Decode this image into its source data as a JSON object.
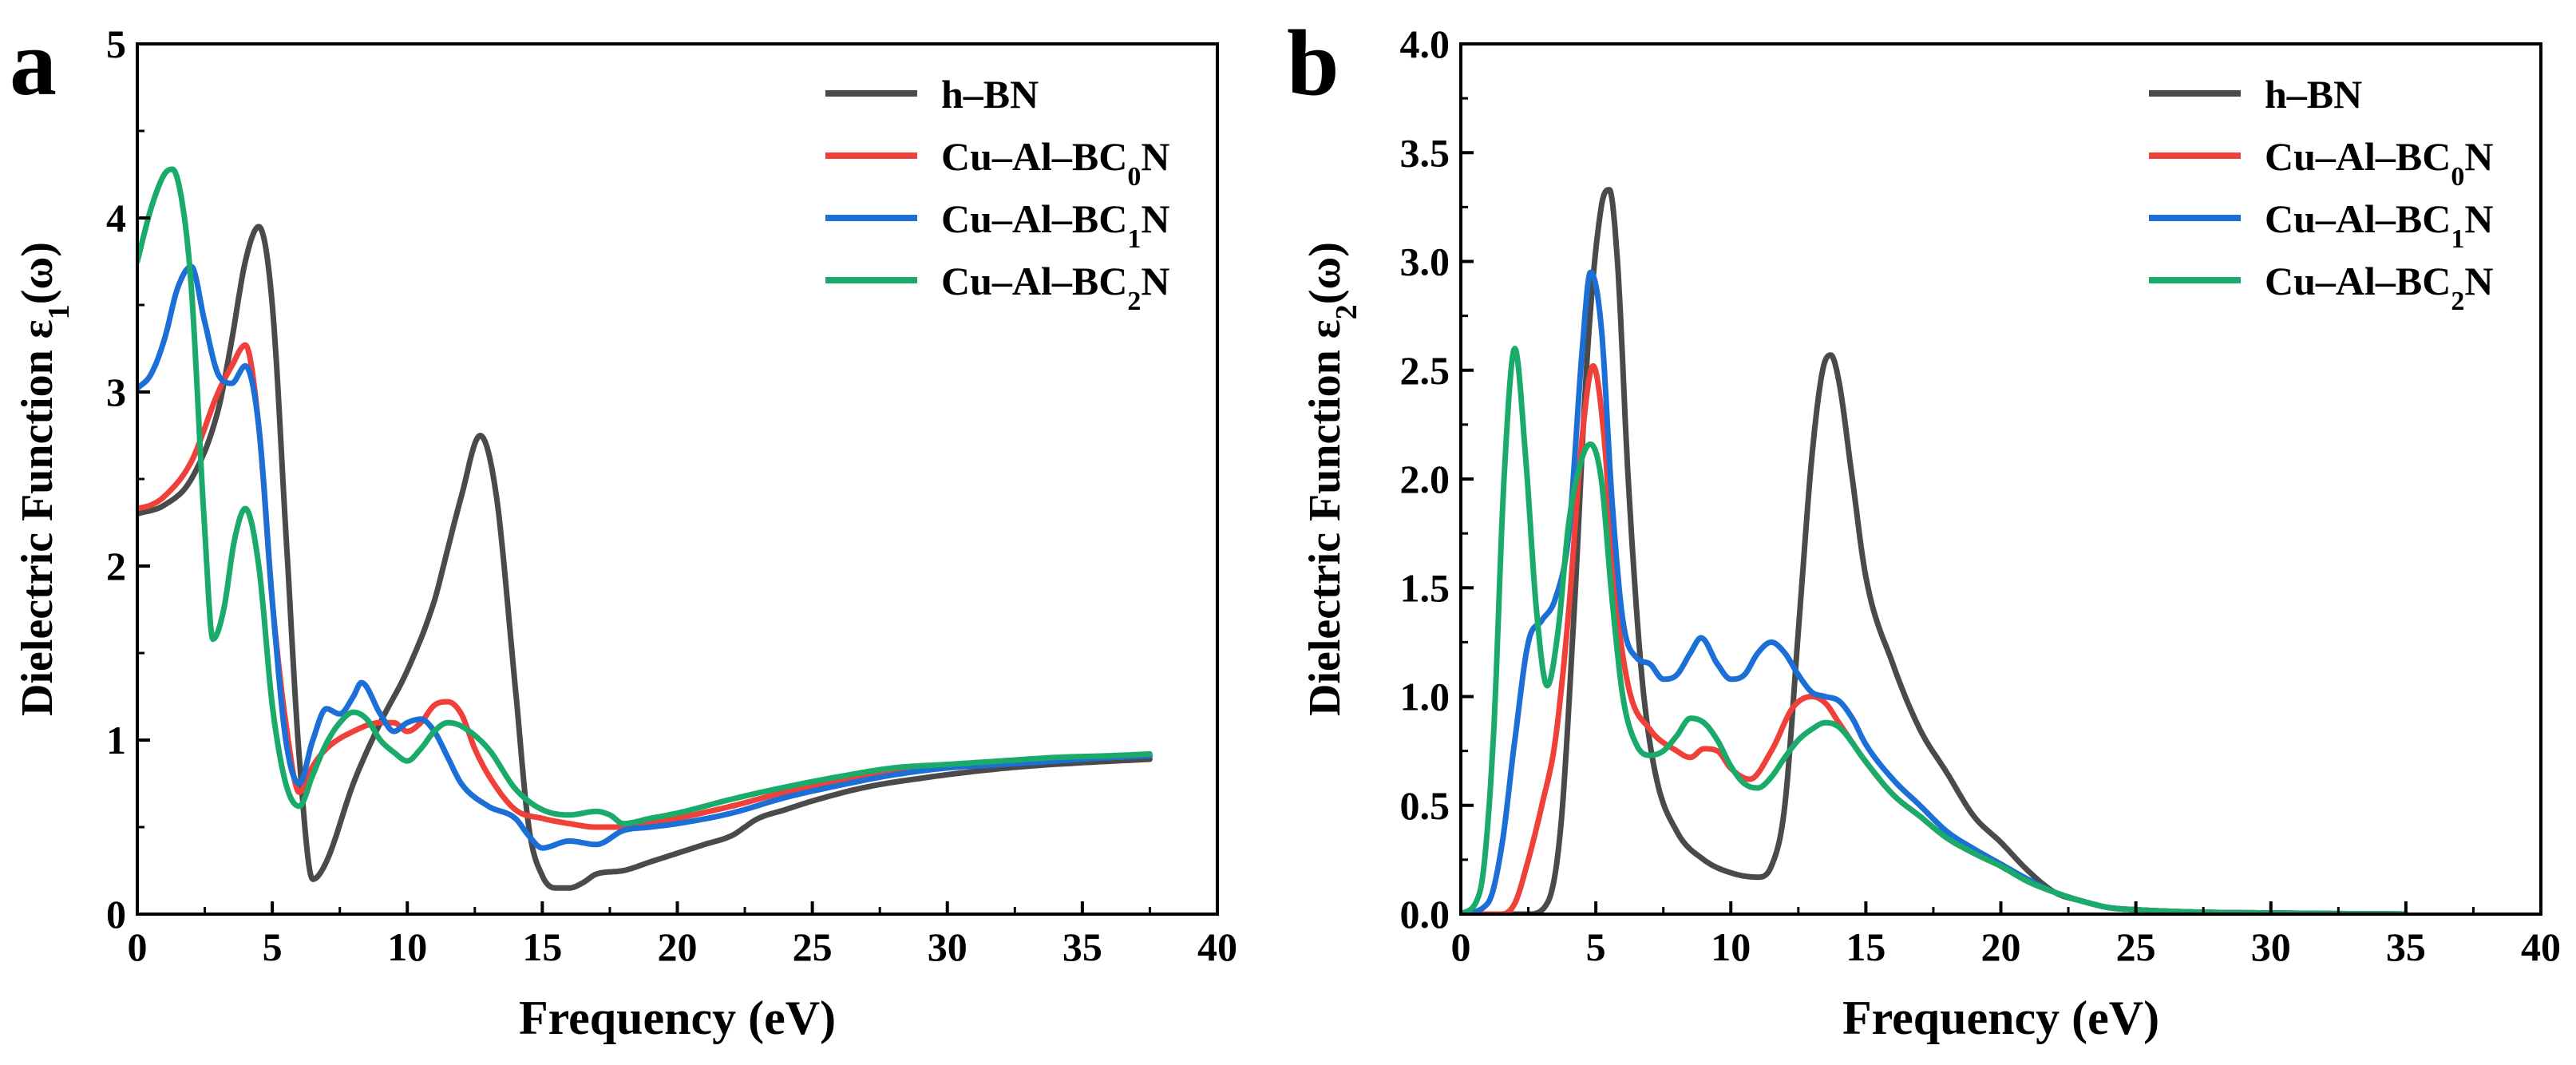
{
  "figure": {
    "background": "#ffffff"
  },
  "chart_data": [
    {
      "type": "line",
      "panel_label": "a",
      "xlabel": "Frequency (eV)",
      "ylabel": {
        "main": "Dielectric Function ε",
        "sub": "1",
        "tail": "(ω)"
      },
      "xlim": [
        0,
        40
      ],
      "ylim": [
        0,
        5
      ],
      "xticks": [
        0,
        5,
        10,
        15,
        20,
        25,
        30,
        35,
        40
      ],
      "yticks": [
        0,
        1,
        2,
        3,
        4,
        5
      ],
      "ytick_labels": [
        "0",
        "1",
        "2",
        "3",
        "4",
        "5"
      ],
      "legend_position": "top-right",
      "series": [
        {
          "name": "h-BN",
          "label": {
            "main": "h–BN"
          },
          "color": "#4a4a4a",
          "x": [
            0,
            1,
            2,
            3,
            3.5,
            4,
            4.5,
            5,
            5.5,
            6,
            6.5,
            7,
            8,
            9,
            10,
            11,
            11.5,
            12,
            12.7,
            13.3,
            14,
            14.5,
            15,
            15.5,
            16,
            16.5,
            17,
            18,
            19,
            20,
            21,
            22,
            23,
            24,
            25,
            27,
            29,
            31,
            33,
            35,
            37.5
          ],
          "y": [
            2.3,
            2.35,
            2.5,
            2.9,
            3.3,
            3.75,
            3.95,
            3.5,
            2.2,
            0.9,
            0.2,
            0.3,
            0.75,
            1.1,
            1.4,
            1.8,
            2.1,
            2.4,
            2.75,
            2.4,
            1.3,
            0.5,
            0.22,
            0.15,
            0.15,
            0.18,
            0.23,
            0.25,
            0.3,
            0.35,
            0.4,
            0.45,
            0.55,
            0.6,
            0.65,
            0.73,
            0.78,
            0.82,
            0.85,
            0.87,
            0.89
          ]
        },
        {
          "name": "Cu-Al-BC0N",
          "label": {
            "main": "Cu–Al–BC",
            "sub": "0",
            "tail": "N"
          },
          "color": "#f0403a",
          "x": [
            0,
            0.5,
            1,
            2,
            3,
            3.5,
            4,
            4.5,
            5,
            5.5,
            6,
            6.5,
            7,
            8,
            9,
            9.5,
            10,
            10.5,
            11,
            11.5,
            12,
            12.5,
            13,
            14,
            15,
            16,
            17,
            18,
            19,
            20,
            22,
            24,
            26,
            28,
            30,
            32,
            34,
            36,
            37.5
          ],
          "y": [
            2.33,
            2.35,
            2.4,
            2.6,
            3.0,
            3.15,
            3.27,
            2.8,
            1.8,
            1.1,
            0.7,
            0.85,
            0.95,
            1.05,
            1.1,
            1.1,
            1.05,
            1.1,
            1.2,
            1.22,
            1.15,
            0.95,
            0.8,
            0.6,
            0.55,
            0.52,
            0.5,
            0.5,
            0.52,
            0.55,
            0.62,
            0.7,
            0.76,
            0.82,
            0.85,
            0.87,
            0.89,
            0.9,
            0.91
          ]
        },
        {
          "name": "Cu-Al-BC1N",
          "label": {
            "main": "Cu–Al–BC",
            "sub": "1",
            "tail": "N"
          },
          "color": "#1c6fd6",
          "x": [
            0,
            0.5,
            1,
            1.5,
            2,
            2.5,
            3,
            3.5,
            4,
            4.5,
            5,
            5.5,
            6,
            6.5,
            7,
            7.5,
            8,
            8.3,
            9,
            9.5,
            10,
            10.5,
            11,
            11.5,
            12,
            13,
            14,
            14.5,
            15,
            16,
            17,
            18,
            19,
            20,
            22,
            24,
            26,
            28,
            30,
            32,
            34,
            36,
            37.5
          ],
          "y": [
            3.02,
            3.1,
            3.3,
            3.6,
            3.72,
            3.4,
            3.1,
            3.05,
            3.15,
            2.8,
            1.8,
            1.0,
            0.75,
            1.0,
            1.18,
            1.15,
            1.25,
            1.33,
            1.15,
            1.05,
            1.1,
            1.12,
            1.05,
            0.9,
            0.75,
            0.62,
            0.55,
            0.45,
            0.38,
            0.42,
            0.4,
            0.48,
            0.5,
            0.52,
            0.58,
            0.67,
            0.74,
            0.8,
            0.84,
            0.86,
            0.88,
            0.9,
            0.91
          ]
        },
        {
          "name": "Cu-Al-BC2N",
          "label": {
            "main": "Cu–Al–BC",
            "sub": "2",
            "tail": "N"
          },
          "color": "#1aab6a",
          "x": [
            0,
            0.5,
            1,
            1.3,
            1.7,
            2,
            2.5,
            2.8,
            3.2,
            3.6,
            4,
            4.5,
            5,
            5.5,
            6,
            6.5,
            7,
            7.5,
            8,
            8.5,
            9,
            9.5,
            10,
            10.5,
            11,
            11.5,
            12,
            13,
            14,
            15,
            16,
            17,
            17.5,
            18,
            19,
            20,
            22,
            24,
            26,
            28,
            30,
            32,
            34,
            36,
            37.5
          ],
          "y": [
            3.75,
            4.05,
            4.25,
            4.28,
            4.05,
            3.6,
            2.2,
            1.58,
            1.75,
            2.15,
            2.33,
            2.0,
            1.2,
            0.75,
            0.62,
            0.8,
            0.98,
            1.1,
            1.16,
            1.12,
            1.0,
            0.93,
            0.88,
            0.95,
            1.05,
            1.1,
            1.08,
            0.95,
            0.72,
            0.6,
            0.57,
            0.59,
            0.57,
            0.52,
            0.55,
            0.58,
            0.66,
            0.73,
            0.79,
            0.84,
            0.86,
            0.88,
            0.9,
            0.91,
            0.92
          ]
        }
      ]
    },
    {
      "type": "line",
      "panel_label": "b",
      "xlabel": "Frequency (eV)",
      "ylabel": {
        "main": "Dielectric Function ε",
        "sub": "2",
        "tail": "(ω)"
      },
      "xlim": [
        0,
        40
      ],
      "ylim": [
        0,
        4
      ],
      "xticks": [
        0,
        5,
        10,
        15,
        20,
        25,
        30,
        35,
        40
      ],
      "yticks": [
        0,
        0.5,
        1,
        1.5,
        2,
        2.5,
        3,
        3.5,
        4
      ],
      "ytick_labels": [
        "0.0",
        "0.5",
        "1.0",
        "1.5",
        "2.0",
        "2.5",
        "3.0",
        "3.5",
        "4.0"
      ],
      "legend_position": "top-right",
      "series": [
        {
          "name": "h-BN",
          "label": {
            "main": "h–BN"
          },
          "color": "#4a4a4a",
          "x": [
            0,
            2.5,
            3.2,
            3.7,
            4.2,
            4.7,
            5.2,
            5.5,
            5.8,
            6.2,
            6.7,
            7.2,
            8,
            9,
            10,
            11,
            11.5,
            12,
            12.5,
            13,
            13.4,
            13.7,
            14,
            14.5,
            15,
            16,
            17,
            18,
            19,
            20,
            21,
            22,
            23,
            24,
            25,
            27,
            30,
            35
          ],
          "y": [
            0,
            0,
            0.05,
            0.4,
            1.4,
            2.6,
            3.25,
            3.33,
            3.0,
            2.0,
            1.1,
            0.65,
            0.38,
            0.25,
            0.19,
            0.17,
            0.22,
            0.5,
            1.3,
            2.1,
            2.5,
            2.57,
            2.45,
            2.0,
            1.55,
            1.15,
            0.85,
            0.65,
            0.45,
            0.33,
            0.2,
            0.1,
            0.06,
            0.03,
            0.02,
            0.01,
            0.005,
            0
          ]
        },
        {
          "name": "Cu-Al-BC0N",
          "label": {
            "main": "Cu–Al–BC",
            "sub": "0",
            "tail": "N"
          },
          "color": "#f0403a",
          "x": [
            0,
            1.5,
            2,
            2.5,
            3,
            3.5,
            4,
            4.5,
            4.9,
            5.3,
            5.7,
            6.2,
            7,
            8,
            8.5,
            9,
            9.5,
            10,
            10.7,
            11.5,
            12.3,
            13,
            13.5,
            14,
            15,
            16,
            17,
            18,
            19,
            20,
            21,
            22,
            23,
            24,
            25,
            27,
            30,
            35
          ],
          "y": [
            0,
            0,
            0.05,
            0.25,
            0.5,
            0.8,
            1.4,
            2.2,
            2.52,
            2.2,
            1.5,
            1.05,
            0.85,
            0.75,
            0.72,
            0.76,
            0.75,
            0.67,
            0.62,
            0.75,
            0.95,
            1.0,
            0.97,
            0.88,
            0.7,
            0.55,
            0.45,
            0.35,
            0.28,
            0.22,
            0.15,
            0.1,
            0.06,
            0.03,
            0.02,
            0.01,
            0.005,
            0
          ]
        },
        {
          "name": "Cu-Al-BC1N",
          "label": {
            "main": "Cu–Al–BC",
            "sub": "1",
            "tail": "N"
          },
          "color": "#1c6fd6",
          "x": [
            0,
            1,
            1.5,
            2,
            2.5,
            3,
            3.5,
            4,
            4.5,
            4.8,
            5.2,
            5.6,
            6,
            6.5,
            7,
            7.5,
            8,
            8.5,
            8.9,
            9.5,
            10,
            10.5,
            11,
            11.5,
            12,
            12.5,
            13,
            13.5,
            14,
            14.5,
            15,
            16,
            17,
            18,
            19,
            20,
            21,
            22,
            23,
            24,
            25,
            27,
            30,
            35
          ],
          "y": [
            0,
            0.05,
            0.3,
            0.8,
            1.25,
            1.35,
            1.45,
            1.75,
            2.6,
            2.95,
            2.7,
            1.9,
            1.35,
            1.18,
            1.15,
            1.08,
            1.1,
            1.2,
            1.27,
            1.15,
            1.08,
            1.1,
            1.2,
            1.25,
            1.2,
            1.1,
            1.02,
            1.0,
            0.98,
            0.9,
            0.78,
            0.62,
            0.5,
            0.38,
            0.3,
            0.23,
            0.16,
            0.1,
            0.06,
            0.03,
            0.02,
            0.01,
            0.005,
            0
          ]
        },
        {
          "name": "Cu-Al-BC2N",
          "label": {
            "main": "Cu–Al–BC",
            "sub": "2",
            "tail": "N"
          },
          "color": "#1aab6a",
          "x": [
            0,
            0.7,
            1.2,
            1.6,
            2,
            2.4,
            2.8,
            3.2,
            3.6,
            4,
            4.5,
            4.8,
            5.2,
            5.6,
            6,
            6.5,
            7,
            7.5,
            8,
            8.5,
            9,
            9.5,
            10,
            10.5,
            11,
            11.5,
            12,
            12.5,
            13,
            13.5,
            14,
            15,
            16,
            17,
            18,
            19,
            20,
            21,
            22,
            23,
            24,
            25,
            27,
            30,
            35
          ],
          "y": [
            0,
            0.1,
            0.8,
            2.0,
            2.6,
            2.1,
            1.4,
            1.05,
            1.3,
            1.8,
            2.1,
            2.16,
            2.0,
            1.45,
            1.0,
            0.78,
            0.73,
            0.75,
            0.82,
            0.9,
            0.88,
            0.8,
            0.68,
            0.6,
            0.58,
            0.63,
            0.72,
            0.8,
            0.85,
            0.88,
            0.86,
            0.7,
            0.55,
            0.45,
            0.35,
            0.28,
            0.22,
            0.15,
            0.1,
            0.06,
            0.03,
            0.02,
            0.01,
            0.005,
            0
          ]
        }
      ]
    }
  ]
}
